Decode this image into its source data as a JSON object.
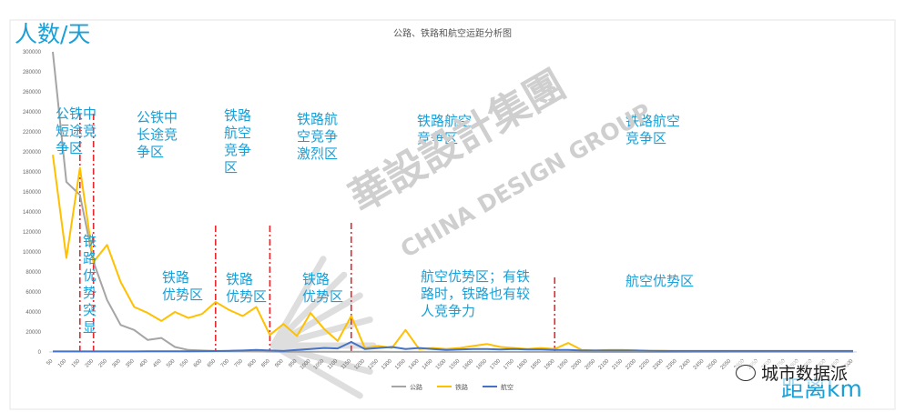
{
  "chart_data": {
    "type": "line",
    "title": "公路、铁路和航空运距分析图",
    "ylabel": "人数/天",
    "xlabel": "距离km",
    "ylim": [
      0,
      300000
    ],
    "yticks": [
      "0",
      "20000",
      "40000",
      "60000",
      "80000",
      "100000",
      "120000",
      "140000",
      "160000",
      "180000",
      "200000",
      "220000",
      "240000",
      "260000",
      "280000",
      "300000"
    ],
    "x": [
      "50",
      "100",
      "150",
      "200",
      "250",
      "300",
      "350",
      "400",
      "450",
      "500",
      "550",
      "600",
      "650",
      "700",
      "750",
      "800",
      "850",
      "900",
      "950",
      "1000",
      "1050",
      "1100",
      "1150",
      "1200",
      "1250",
      "1300",
      "1350",
      "1400",
      "1450",
      "1500",
      "1550",
      "1600",
      "1650",
      "1700",
      "1750",
      "1800",
      "1850",
      "1900",
      "1950",
      "2000",
      "2050",
      "2100",
      "2150",
      "2200",
      "2250",
      "2300",
      "2350",
      "2400",
      "2450",
      "2500",
      "2550",
      "2600",
      "2650",
      "2700",
      "2750",
      "2800",
      "2850",
      "2900",
      "2950",
      "3000"
    ],
    "series": [
      {
        "name": "公路",
        "color": "#a5a5a5",
        "values": [
          300000,
          170000,
          157000,
          90000,
          52000,
          27000,
          22000,
          12000,
          14000,
          5000,
          2000,
          1500,
          1000,
          800,
          600,
          500,
          400,
          300,
          300,
          250,
          200,
          200,
          180,
          150,
          150,
          120,
          120,
          100,
          100,
          100,
          90,
          80,
          80,
          70,
          70,
          60,
          60,
          50,
          50,
          50,
          40,
          40,
          40,
          40,
          30,
          30,
          30,
          30,
          30,
          30,
          30,
          30,
          30,
          30,
          30,
          30,
          30,
          30,
          30,
          30
        ]
      },
      {
        "name": "铁路",
        "color": "#ffc000",
        "values": [
          197000,
          94000,
          184000,
          90000,
          107000,
          70000,
          45000,
          39000,
          31000,
          40000,
          34000,
          38000,
          50000,
          42000,
          36000,
          45000,
          17000,
          28000,
          16000,
          39000,
          23000,
          11000,
          36000,
          4000,
          6000,
          4000,
          22000,
          3000,
          4000,
          3000,
          4000,
          6000,
          8000,
          5000,
          4000,
          3000,
          4000,
          3000,
          9000,
          2000,
          1500,
          2000,
          2000,
          1500,
          1000,
          1200,
          800,
          600,
          500,
          500,
          400,
          400,
          400,
          300,
          300,
          300,
          300,
          300,
          300,
          300
        ]
      },
      {
        "name": "航空",
        "color": "#4472c4",
        "values": [
          500,
          500,
          500,
          500,
          500,
          500,
          500,
          600,
          600,
          600,
          700,
          800,
          900,
          1200,
          1500,
          2000,
          1500,
          1000,
          2000,
          3000,
          4000,
          3500,
          10000,
          3000,
          4000,
          5000,
          3000,
          4000,
          3000,
          2000,
          2500,
          3000,
          3000,
          2500,
          3000,
          2500,
          2500,
          2000,
          2000,
          1500,
          1500,
          1500,
          1500,
          1500,
          1200,
          1000,
          1000,
          1000,
          1000,
          1000,
          1000,
          1000,
          1000,
          1000,
          1000,
          1000,
          1000,
          1000,
          1000,
          1000
        ]
      }
    ],
    "zones": [
      {
        "upper": "公铁中\n短途竞\n争区",
        "lower": "铁\n路\n优\n势\n突\n显"
      },
      {
        "upper": "公铁中\n长途竞\n争区",
        "lower": "铁路\n优势区"
      },
      {
        "upper": "铁路\n航空\n竞争\n区",
        "lower": "铁路\n优势区"
      },
      {
        "upper": "铁路航\n空竞争\n激烈区",
        "lower": "铁路\n优势区"
      },
      {
        "upper": "铁路航空\n竞争区",
        "lower": "航空优势区；有铁\n路时，铁路也有较\n人竞争力"
      },
      {
        "upper": "铁路航空\n竞争区",
        "lower": "航空优势区"
      }
    ],
    "dividers_at_km": [
      "150",
      "200",
      "650",
      "850",
      "1150",
      "1900"
    ],
    "grid": false,
    "legend": "bottom"
  },
  "watermark": {
    "text_cn": "華設設計集團",
    "text_en": "CHINA DESIGN GROUP",
    "badge": "城市数据派"
  }
}
